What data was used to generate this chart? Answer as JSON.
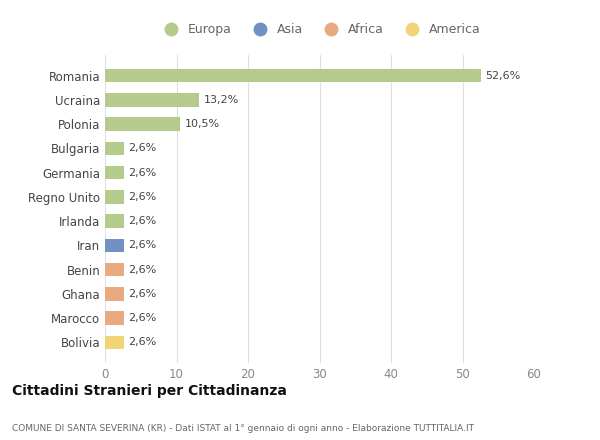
{
  "countries": [
    "Romania",
    "Ucraina",
    "Polonia",
    "Bulgaria",
    "Germania",
    "Regno Unito",
    "Irlanda",
    "Iran",
    "Benin",
    "Ghana",
    "Marocco",
    "Bolivia"
  ],
  "values": [
    52.6,
    13.2,
    10.5,
    2.6,
    2.6,
    2.6,
    2.6,
    2.6,
    2.6,
    2.6,
    2.6,
    2.6
  ],
  "labels": [
    "52,6%",
    "13,2%",
    "10,5%",
    "2,6%",
    "2,6%",
    "2,6%",
    "2,6%",
    "2,6%",
    "2,6%",
    "2,6%",
    "2,6%",
    "2,6%"
  ],
  "colors": [
    "#b5cb8b",
    "#b5cb8b",
    "#b5cb8b",
    "#b5cb8b",
    "#b5cb8b",
    "#b5cb8b",
    "#b5cb8b",
    "#7191c4",
    "#e8aa7e",
    "#e8aa7e",
    "#e8aa7e",
    "#f2d478"
  ],
  "legend_labels": [
    "Europa",
    "Asia",
    "Africa",
    "America"
  ],
  "legend_colors": [
    "#b5cb8b",
    "#7191c4",
    "#e8aa7e",
    "#f2d478"
  ],
  "xlim": [
    0,
    60
  ],
  "xticks": [
    0,
    10,
    20,
    30,
    40,
    50,
    60
  ],
  "title": "Cittadini Stranieri per Cittadinanza",
  "subtitle": "COMUNE DI SANTA SEVERINA (KR) - Dati ISTAT al 1° gennaio di ogni anno - Elaborazione TUTTITALIA.IT",
  "bg_color": "#ffffff",
  "grid_color": "#e0e0e0",
  "bar_height": 0.55
}
